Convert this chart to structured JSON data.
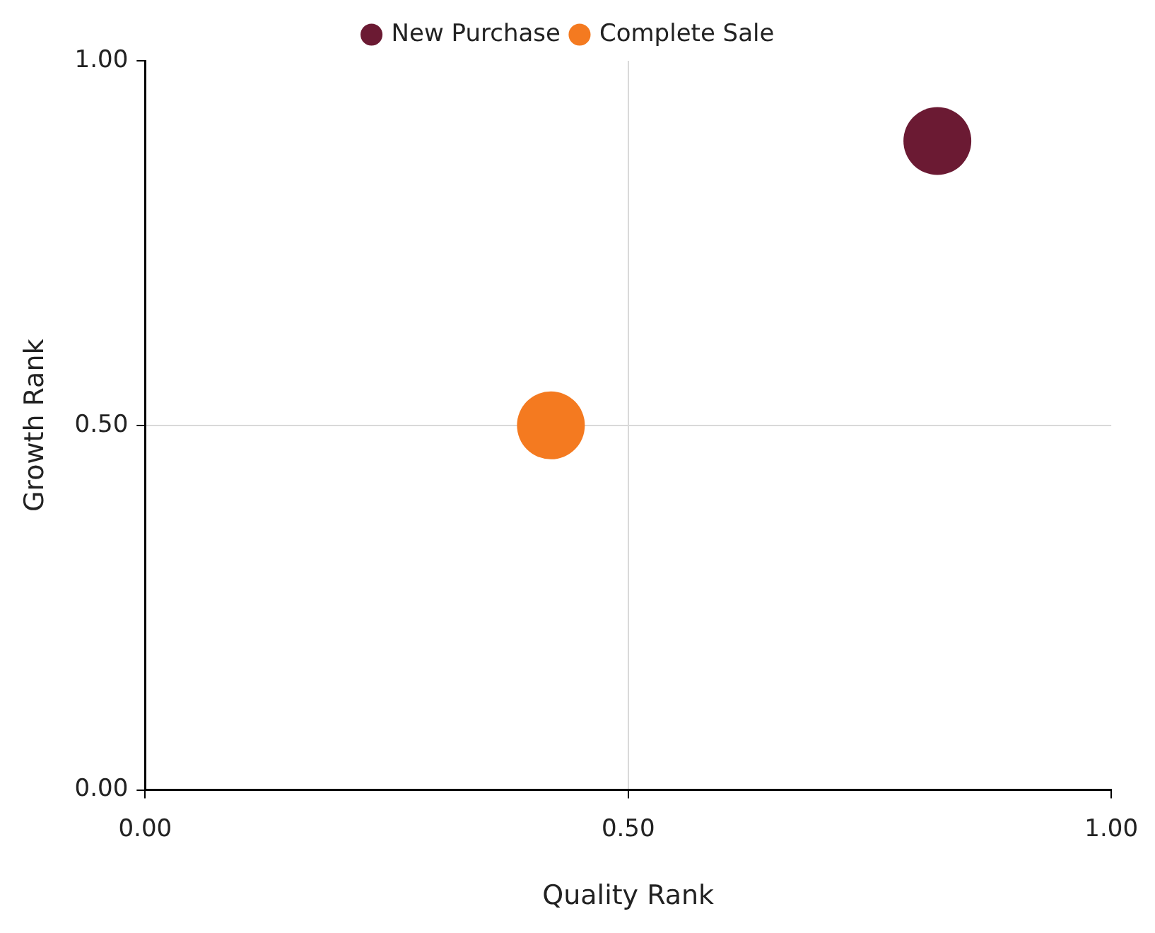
{
  "chart_data": {
    "type": "scatter",
    "xlabel": "Quality Rank",
    "ylabel": "Growth Rank",
    "series": [
      {
        "name": "New Purchase",
        "color": "#6b1a33",
        "x": [
          0.82
        ],
        "values": [
          0.89
        ]
      },
      {
        "name": "Complete Sale",
        "color": "#f47a20",
        "x": [
          0.42
        ],
        "values": [
          0.5
        ]
      }
    ],
    "xlim": [
      0,
      1
    ],
    "ylim": [
      0,
      1
    ],
    "xticks": [
      {
        "value": 0,
        "label": "0.00"
      },
      {
        "value": 0.5,
        "label": "0.50"
      },
      {
        "value": 1,
        "label": "1.00"
      }
    ],
    "yticks": [
      {
        "value": 0,
        "label": "0.00"
      },
      {
        "value": 0.5,
        "label": "0.50"
      },
      {
        "value": 1,
        "label": "1.00"
      }
    ],
    "grid": true,
    "legend": "top",
    "marker": "circle"
  }
}
